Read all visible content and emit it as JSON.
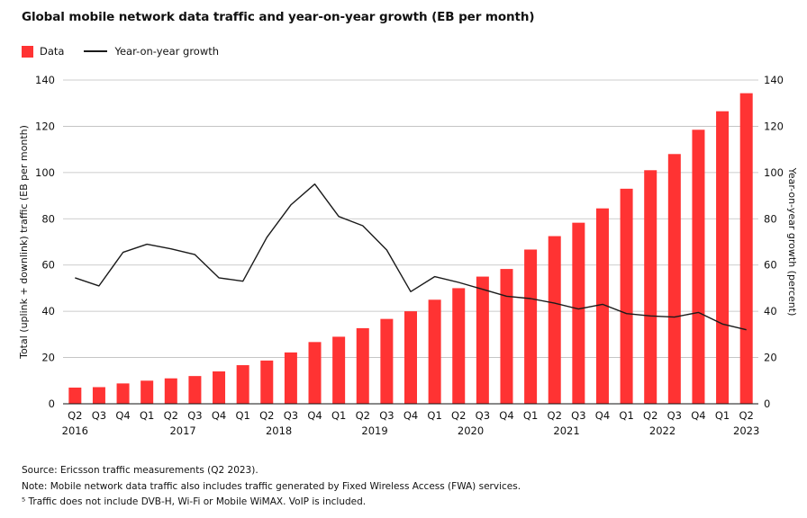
{
  "title": "Global mobile network data traffic and year-on-year growth (EB per month)",
  "legend": {
    "data": "Data",
    "growth": "Year-on-year growth"
  },
  "colors": {
    "bars": "#ff3333",
    "line": "#1a1a1a",
    "grid": "#bdbdbd"
  },
  "notes": {
    "source": "Source: Ericsson traffic measurements (Q2 2023).",
    "note": "Note: Mobile network data traffic also includes traffic generated by Fixed Wireless Access (FWA) services.",
    "footnote": "⁵ Traffic does not include DVB-H, Wi-Fi or Mobile WiMAX. VoIP is included."
  },
  "chart_data": {
    "type": "bar",
    "title": "Global mobile network data traffic and year-on-year growth (EB per month)",
    "categories": [
      "Q2",
      "Q3",
      "Q4",
      "Q1",
      "Q2",
      "Q3",
      "Q4",
      "Q1",
      "Q2",
      "Q3",
      "Q4",
      "Q1",
      "Q2",
      "Q3",
      "Q4",
      "Q1",
      "Q2",
      "Q3",
      "Q4",
      "Q1",
      "Q2",
      "Q3",
      "Q4",
      "Q1",
      "Q2",
      "Q3",
      "Q4",
      "Q1",
      "Q2"
    ],
    "year_labels": [
      {
        "label": "2016",
        "index": 0
      },
      {
        "label": "2017",
        "index": 4.5
      },
      {
        "label": "2018",
        "index": 8.5
      },
      {
        "label": "2019",
        "index": 12.5
      },
      {
        "label": "2020",
        "index": 16.5
      },
      {
        "label": "2021",
        "index": 20.5
      },
      {
        "label": "2022",
        "index": 24.5
      },
      {
        "label": "2023",
        "index": 28
      }
    ],
    "series": [
      {
        "name": "Data",
        "type": "bar",
        "axis": "left",
        "values": [
          7,
          7.2,
          8.8,
          10,
          11,
          12,
          14,
          16.7,
          18.7,
          22.2,
          26.7,
          29,
          32.7,
          36.7,
          40,
          45,
          50,
          55,
          58.3,
          66.7,
          72.5,
          78.3,
          84.5,
          93,
          101,
          108,
          118.5,
          126.5,
          134.3
        ]
      },
      {
        "name": "Year-on-year growth",
        "type": "line",
        "axis": "right",
        "values": [
          54.5,
          51,
          65.5,
          69,
          67,
          64.5,
          54.5,
          53,
          72,
          86,
          95,
          81,
          77,
          66.5,
          48.5,
          55,
          52.5,
          49.5,
          46.5,
          45.5,
          43.5,
          41,
          43,
          39,
          38,
          37.5,
          39.5,
          34.5,
          32
        ]
      }
    ],
    "ylabel": "Total (uplink + downlink) traffic (EB per month)",
    "y2label": "Year-on-year growth (percent)",
    "ylim": [
      0,
      140
    ],
    "y2lim": [
      0,
      140
    ],
    "yticks": [
      0,
      20,
      40,
      60,
      80,
      100,
      120,
      140
    ],
    "grid": true,
    "legend_position": "top-left"
  }
}
